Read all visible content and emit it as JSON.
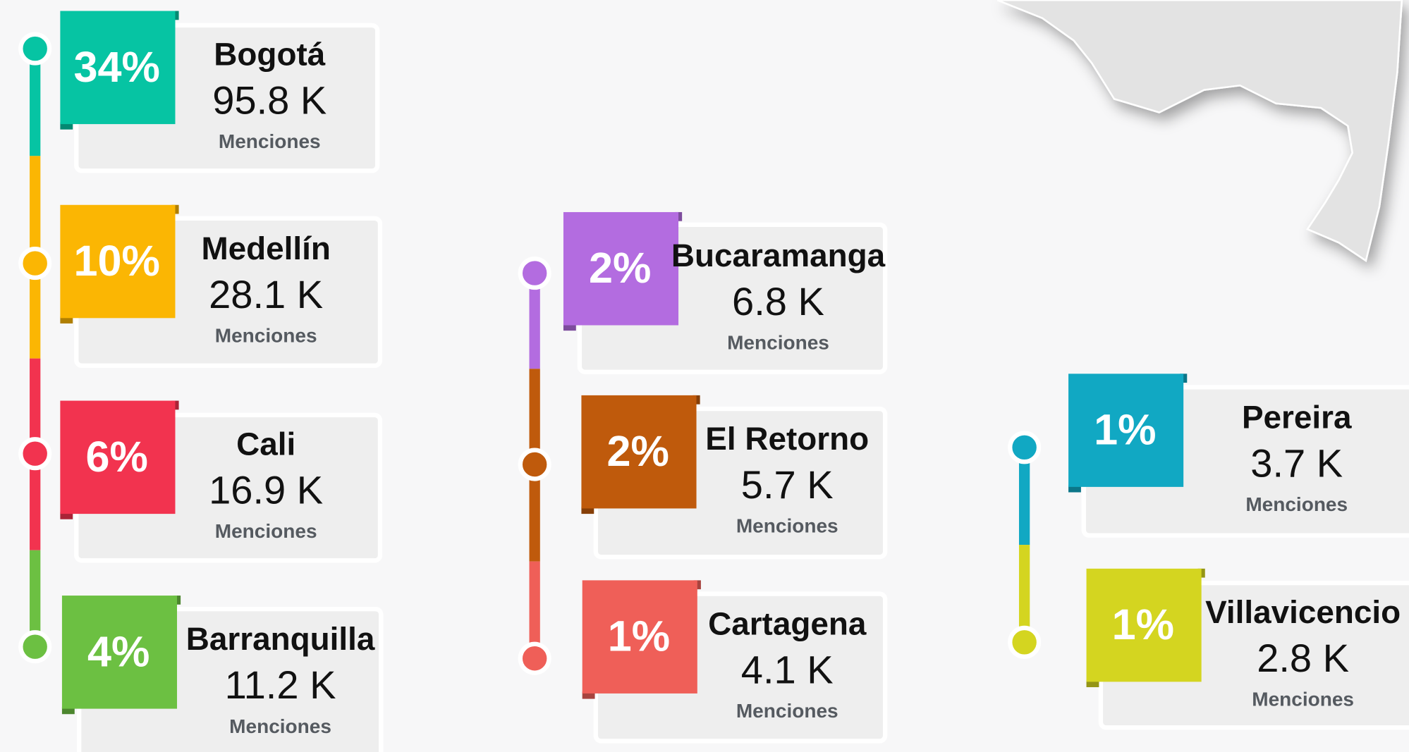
{
  "cities": [
    {
      "percent": "34%",
      "name": "Bogotá",
      "mentions": "95.8 K",
      "unit": "Menciones",
      "color": "#06c4a3"
    },
    {
      "percent": "10%",
      "name": "Medellín",
      "mentions": "28.1 K",
      "unit": "Menciones",
      "color": "#fbb603"
    },
    {
      "percent": "6%",
      "name": "Cali",
      "mentions": "16.9 K",
      "unit": "Menciones",
      "color": "#f2334f"
    },
    {
      "percent": "4%",
      "name": "Barranquilla",
      "mentions": "11.2 K",
      "unit": "Menciones",
      "color": "#6cc042"
    },
    {
      "percent": "2%",
      "name": "Bucaramanga",
      "mentions": "6.8 K",
      "unit": "Menciones",
      "color": "#b36ce0"
    },
    {
      "percent": "2%",
      "name": "El Retorno",
      "mentions": "5.7 K",
      "unit": "Menciones",
      "color": "#bf5a0c"
    },
    {
      "percent": "1%",
      "name": "Cartagena",
      "mentions": "4.1 K",
      "unit": "Menciones",
      "color": "#ef5f58"
    },
    {
      "percent": "1%",
      "name": "Pereira",
      "mentions": "3.7 K",
      "unit": "Menciones",
      "color": "#11a8c3"
    },
    {
      "percent": "1%",
      "name": "Villavicencio",
      "mentions": "2.8 K",
      "unit": "Menciones",
      "color": "#d4d520"
    }
  ]
}
